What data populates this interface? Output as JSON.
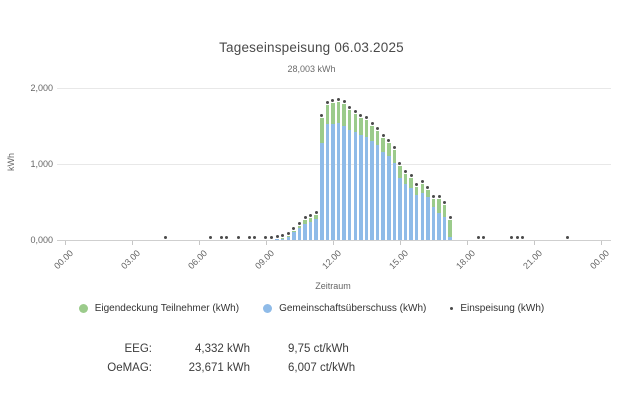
{
  "chart": {
    "title": "Tageseinspeisung 06.03.2025",
    "subtitle": "28,003 kWh",
    "x_axis_title": "Zeitraum",
    "y_axis_title": "kWh"
  },
  "chart_data": {
    "type": "bar",
    "stacked": true,
    "title": "Tageseinspeisung 06.03.2025",
    "subtitle": "28,003 kWh",
    "xlabel": "Zeitraum",
    "ylabel": "kWh",
    "x_tick_labels": [
      "00.00",
      "03.00",
      "06.00",
      "09.00",
      "12.00",
      "15.00",
      "18.00",
      "21.00",
      "00.00"
    ],
    "x_tick_hours": [
      0,
      3,
      6,
      9,
      12,
      15,
      18,
      21,
      24
    ],
    "y_tick_labels": [
      "0,000",
      "1,000",
      "2,000"
    ],
    "y_tick_values": [
      0,
      1000,
      2000
    ],
    "ylim": [
      0,
      2000
    ],
    "x_range_hours": [
      0,
      24
    ],
    "interval_minutes": 15,
    "grid": "horizontal",
    "legend_position": "bottom",
    "series": [
      {
        "name": "Eigendeckung Teilnehmer (kWh)",
        "type": "column",
        "color": "#9bcb8b"
      },
      {
        "name": "Gemeinschaftsüberschuss (kWh)",
        "type": "column",
        "color": "#8fbbe8"
      },
      {
        "name": "Einspeisung (kWh)",
        "type": "point",
        "color": "#4a4a4a"
      }
    ],
    "bars": [
      {
        "time": "09.30",
        "gemeinschaftsueberschuss": 8,
        "eigendeckung": 4,
        "einspeisung": 12
      },
      {
        "time": "09.45",
        "gemeinschaftsueberschuss": 18,
        "eigendeckung": 7,
        "einspeisung": 25
      },
      {
        "time": "10.00",
        "gemeinschaftsueberschuss": 40,
        "eigendeckung": 10,
        "einspeisung": 50
      },
      {
        "time": "10.15",
        "gemeinschaftsueberschuss": 100,
        "eigendeckung": 20,
        "einspeisung": 120
      },
      {
        "time": "10.30",
        "gemeinschaftsueberschuss": 155,
        "eigendeckung": 30,
        "einspeisung": 185
      },
      {
        "time": "10.45",
        "gemeinschaftsueberschuss": 215,
        "eigendeckung": 45,
        "einspeisung": 260
      },
      {
        "time": "11.00",
        "gemeinschaftsueberschuss": 240,
        "eigendeckung": 50,
        "einspeisung": 290
      },
      {
        "time": "11.15",
        "gemeinschaftsueberschuss": 270,
        "eigendeckung": 60,
        "einspeisung": 330
      },
      {
        "time": "11.30",
        "gemeinschaftsueberschuss": 1280,
        "eigendeckung": 330,
        "einspeisung": 1610
      },
      {
        "time": "11.45",
        "gemeinschaftsueberschuss": 1520,
        "eigendeckung": 260,
        "einspeisung": 1780
      },
      {
        "time": "12.00",
        "gemeinschaftsueberschuss": 1530,
        "eigendeckung": 270,
        "einspeisung": 1800
      },
      {
        "time": "12.15",
        "gemeinschaftsueberschuss": 1540,
        "eigendeckung": 270,
        "einspeisung": 1810
      },
      {
        "time": "12.30",
        "gemeinschaftsueberschuss": 1500,
        "eigendeckung": 290,
        "einspeisung": 1790
      },
      {
        "time": "12.45",
        "gemeinschaftsueberschuss": 1450,
        "eigendeckung": 260,
        "einspeisung": 1710
      },
      {
        "time": "13.00",
        "gemeinschaftsueberschuss": 1420,
        "eigendeckung": 240,
        "einspeisung": 1660
      },
      {
        "time": "13.15",
        "gemeinschaftsueberschuss": 1380,
        "eigendeckung": 230,
        "einspeisung": 1610
      },
      {
        "time": "13.30",
        "gemeinschaftsueberschuss": 1350,
        "eigendeckung": 230,
        "einspeisung": 1580
      },
      {
        "time": "13.45",
        "gemeinschaftsueberschuss": 1300,
        "eigendeckung": 200,
        "einspeisung": 1500
      },
      {
        "time": "14.00",
        "gemeinschaftsueberschuss": 1250,
        "eigendeckung": 190,
        "einspeisung": 1440
      },
      {
        "time": "14.15",
        "gemeinschaftsueberschuss": 1160,
        "eigendeckung": 180,
        "einspeisung": 1340
      },
      {
        "time": "14.30",
        "gemeinschaftsueberschuss": 1100,
        "eigendeckung": 170,
        "einspeisung": 1270
      },
      {
        "time": "14.45",
        "gemeinschaftsueberschuss": 1010,
        "eigendeckung": 170,
        "einspeisung": 1180
      },
      {
        "time": "15.00",
        "gemeinschaftsueberschuss": 820,
        "eigendeckung": 150,
        "einspeisung": 970
      },
      {
        "time": "15.15",
        "gemeinschaftsueberschuss": 740,
        "eigendeckung": 130,
        "einspeisung": 870
      },
      {
        "time": "15.30",
        "gemeinschaftsueberschuss": 690,
        "eigendeckung": 125,
        "einspeisung": 815
      },
      {
        "time": "15.45",
        "gemeinschaftsueberschuss": 590,
        "eigendeckung": 110,
        "einspeisung": 700
      },
      {
        "time": "16.00",
        "gemeinschaftsueberschuss": 620,
        "eigendeckung": 120,
        "einspeisung": 740
      },
      {
        "time": "16.15",
        "gemeinschaftsueberschuss": 560,
        "eigendeckung": 100,
        "einspeisung": 660
      },
      {
        "time": "16.30",
        "gemeinschaftsueberschuss": 434,
        "eigendeckung": 106,
        "einspeisung": 540
      },
      {
        "time": "16.45",
        "gemeinschaftsueberschuss": 360,
        "eigendeckung": 180,
        "einspeisung": 540
      },
      {
        "time": "17.00",
        "gemeinschaftsueberschuss": 303,
        "eigendeckung": 158,
        "einspeisung": 461
      },
      {
        "time": "17.15",
        "gemeinschaftsueberschuss": 40,
        "eigendeckung": 220,
        "einspeisung": 260
      }
    ],
    "zero_markers": [
      "04.30",
      "06.30",
      "07.00",
      "07.15",
      "07.45",
      "08.15",
      "08.30",
      "09.00",
      "09.15",
      "18.30",
      "18.45",
      "20.00",
      "20.15",
      "20.30",
      "22.30"
    ]
  },
  "legend": {
    "items": [
      {
        "label": "Eigendeckung Teilnehmer (kWh)",
        "color": "#9bcb8b",
        "shape": "circle"
      },
      {
        "label": "Gemeinschaftsüberschuss (kWh)",
        "color": "#8fbbe8",
        "shape": "circle"
      },
      {
        "label": "Einspeisung (kWh)",
        "color": "#4a4a4a",
        "shape": "small-dot"
      }
    ]
  },
  "stats": {
    "rows": [
      {
        "label": "EEG:",
        "value": "4,332 kWh",
        "price": "9,75 ct/kWh"
      },
      {
        "label": "OeMAG:",
        "value": "23,671 kWh",
        "price": "6,007 ct/kWh"
      }
    ]
  }
}
